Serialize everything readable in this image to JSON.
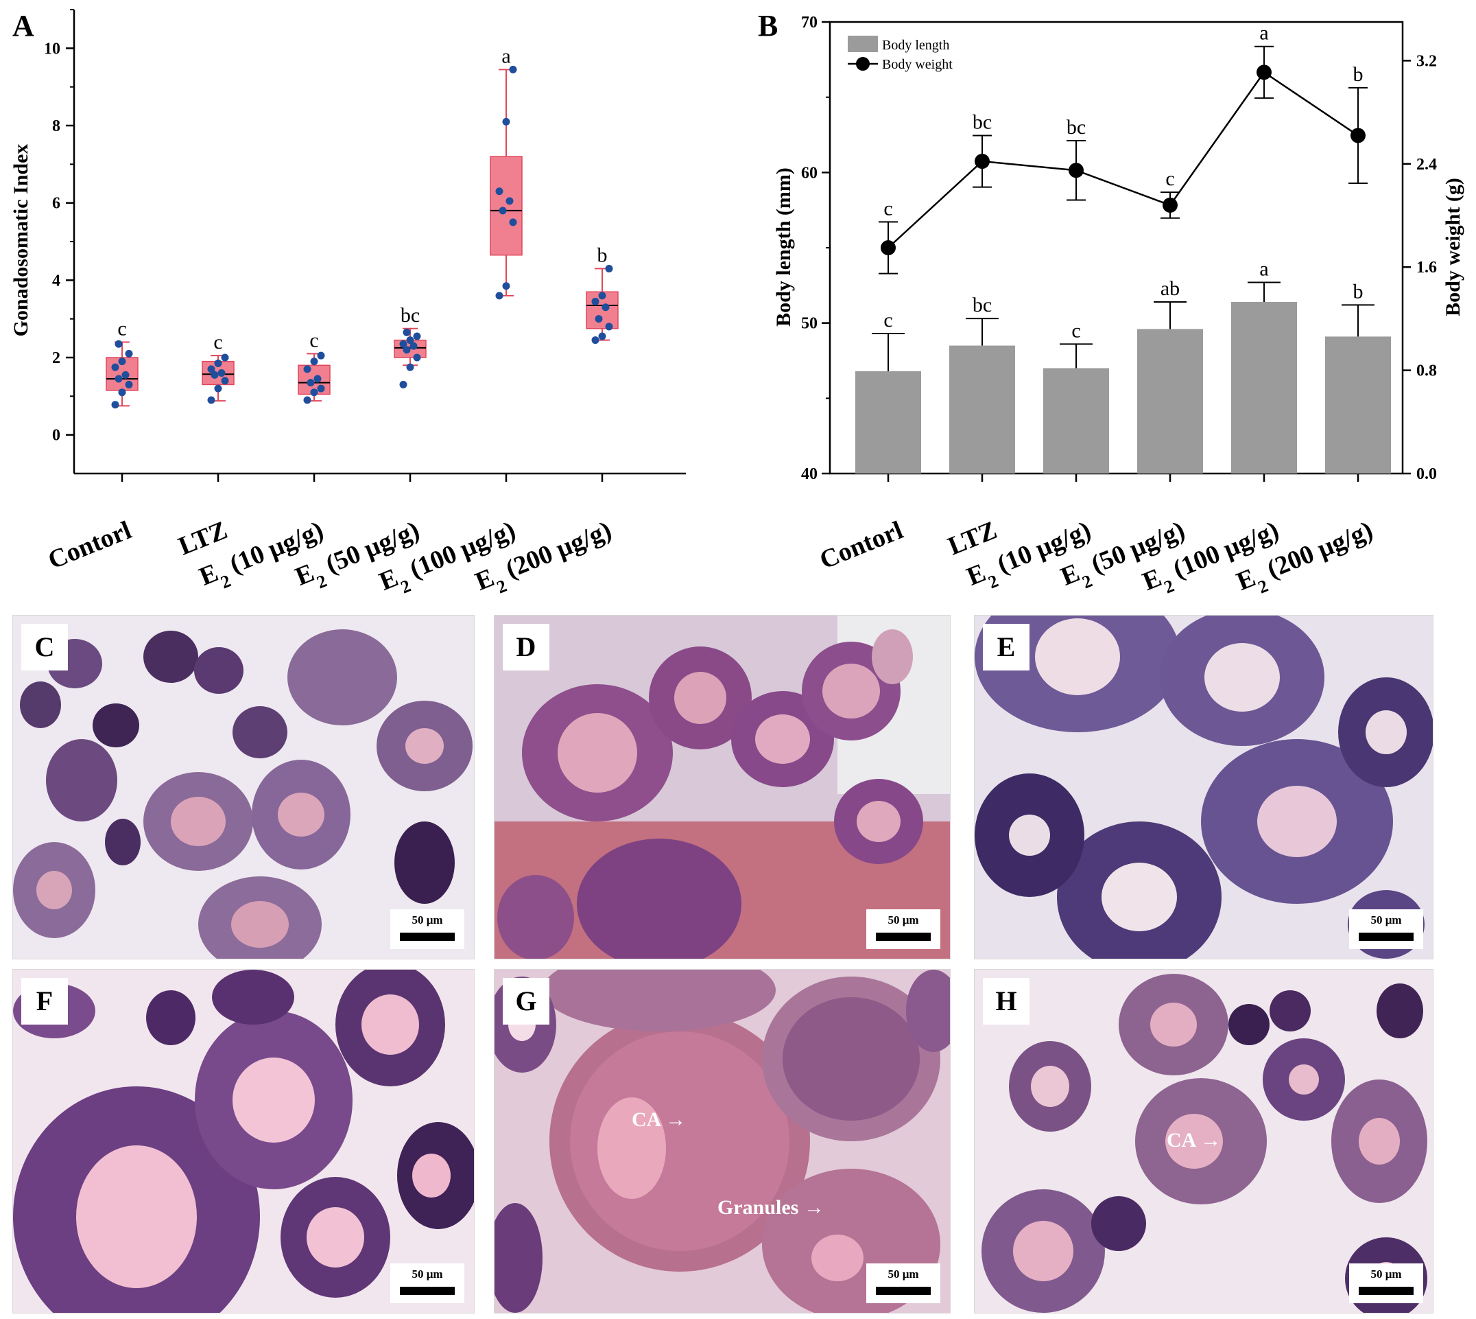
{
  "panels": {
    "A": "A",
    "B": "B"
  },
  "colors": {
    "box_fill": "#f0808f",
    "box_edge": "#e0475c",
    "dot": "#1f4e9c",
    "bar": "#9b9b9b",
    "line": "#000000"
  },
  "chart_data": [
    {
      "panel": "A",
      "type": "box",
      "ylabel": "Gonadosomatic Index",
      "ylim": [
        -1,
        11
      ],
      "yticks": [
        0,
        2,
        4,
        6,
        8,
        10
      ],
      "categories": [
        "Contorl",
        "LTZ",
        "E2 (10 μg/g)",
        "E2 (50 μg/g)",
        "E2 (100 μg/g)",
        "E2 (200 μg/g)"
      ],
      "boxes": [
        {
          "min": 0.75,
          "q1": 1.15,
          "median": 1.45,
          "q3": 2.0,
          "max": 2.4,
          "points": [
            0.78,
            1.1,
            1.3,
            1.45,
            1.55,
            1.75,
            1.9,
            2.1,
            2.35
          ],
          "letter": "c"
        },
        {
          "min": 0.88,
          "q1": 1.3,
          "median": 1.57,
          "q3": 1.9,
          "max": 2.05,
          "points": [
            0.9,
            1.2,
            1.4,
            1.55,
            1.6,
            1.7,
            1.85,
            2.0
          ],
          "letter": "c"
        },
        {
          "min": 0.88,
          "q1": 1.05,
          "median": 1.35,
          "q3": 1.8,
          "max": 2.1,
          "points": [
            0.9,
            1.1,
            1.2,
            1.35,
            1.45,
            1.7,
            1.9,
            2.05
          ],
          "letter": "c"
        },
        {
          "min": 1.8,
          "q1": 2.0,
          "median": 2.25,
          "q3": 2.45,
          "max": 2.75,
          "points": [
            1.3,
            1.75,
            2.0,
            2.2,
            2.3,
            2.35,
            2.45,
            2.55,
            2.65
          ],
          "letter": "bc"
        },
        {
          "min": 3.6,
          "q1": 4.65,
          "median": 5.8,
          "q3": 7.2,
          "max": 9.45,
          "points": [
            3.6,
            3.85,
            5.5,
            5.8,
            6.05,
            6.3,
            8.1,
            9.45
          ],
          "letter": "a"
        },
        {
          "min": 2.45,
          "q1": 2.75,
          "median": 3.35,
          "q3": 3.7,
          "max": 4.3,
          "points": [
            2.45,
            2.55,
            2.8,
            3.0,
            3.3,
            3.45,
            3.6,
            4.3
          ],
          "letter": "b"
        }
      ]
    },
    {
      "panel": "B",
      "type": "bar+line",
      "ylabel_left": "Body length (mm)",
      "ylabel_right": "Body weight (g)",
      "ylim_left": [
        40,
        70
      ],
      "yticks_left": [
        40,
        50,
        60,
        70
      ],
      "ylim_right": [
        0,
        3.5
      ],
      "yticks_right": [
        "0.0",
        "0.8",
        "1.6",
        "2.4",
        "3.2"
      ],
      "categories": [
        "Contorl",
        "LTZ",
        "E2 (10 μg/g)",
        "E2 (50 μg/g)",
        "E2 (100 μg/g)",
        "E2 (200 μg/g)"
      ],
      "legend": [
        "Body length",
        "Body weight"
      ],
      "legend_position": "top-left",
      "series": [
        {
          "name": "Body length",
          "kind": "bar",
          "values": [
            46.8,
            48.5,
            47.0,
            49.6,
            51.4,
            49.1
          ],
          "errors": [
            2.5,
            1.8,
            1.6,
            1.8,
            1.3,
            2.1
          ],
          "letters": [
            "c",
            "bc",
            "c",
            "ab",
            "a",
            "b"
          ]
        },
        {
          "name": "Body weight",
          "kind": "line",
          "values": [
            1.75,
            2.42,
            2.35,
            2.08,
            3.11,
            2.62
          ],
          "errors": [
            0.2,
            0.2,
            0.23,
            0.1,
            0.2,
            0.37
          ],
          "letters": [
            "c",
            "bc",
            "bc",
            "c",
            "a",
            "b"
          ]
        }
      ]
    }
  ],
  "micrographs": [
    {
      "label": "C",
      "scale": "50 μm"
    },
    {
      "label": "D",
      "scale": "50 μm"
    },
    {
      "label": "E",
      "scale": "50 μm"
    },
    {
      "label": "F",
      "scale": "50 μm"
    },
    {
      "label": "G",
      "scale": "50 μm",
      "annotations": [
        "CA",
        "Granules"
      ]
    },
    {
      "label": "H",
      "scale": "50 μm",
      "annotations": [
        "CA"
      ]
    }
  ]
}
